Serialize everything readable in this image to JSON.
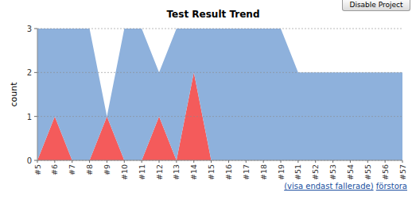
{
  "chart_data": {
    "type": "area",
    "title": "Test Result Trend",
    "y_label": "count",
    "categories": [
      "#5",
      "#6",
      "#7",
      "#8",
      "#9",
      "#10",
      "#11",
      "#12",
      "#13",
      "#14",
      "#15",
      "#16",
      "#17",
      "#18",
      "#19",
      "#51",
      "#52",
      "#53",
      "#54",
      "#55",
      "#56",
      "#57"
    ],
    "series": [
      {
        "color": "#f45b5b",
        "values": [
          0,
          1,
          0,
          0,
          1,
          0,
          0,
          1,
          0,
          2,
          0,
          0,
          0,
          0,
          0,
          0,
          0,
          0,
          0,
          0,
          0,
          0
        ]
      },
      {
        "color": "#8eb1dc",
        "values": [
          3,
          2,
          3,
          3,
          0,
          3,
          3,
          1,
          3,
          1,
          3,
          3,
          3,
          3,
          3,
          2,
          2,
          2,
          2,
          2,
          2,
          2
        ]
      }
    ],
    "stacked": true,
    "grid": true,
    "ylim": [
      0,
      3
    ],
    "yticks": [
      0,
      1,
      2,
      3
    ]
  },
  "page": {
    "button": "Disable Project",
    "links": [
      "(visa endast fallerade)",
      "förstora"
    ]
  }
}
